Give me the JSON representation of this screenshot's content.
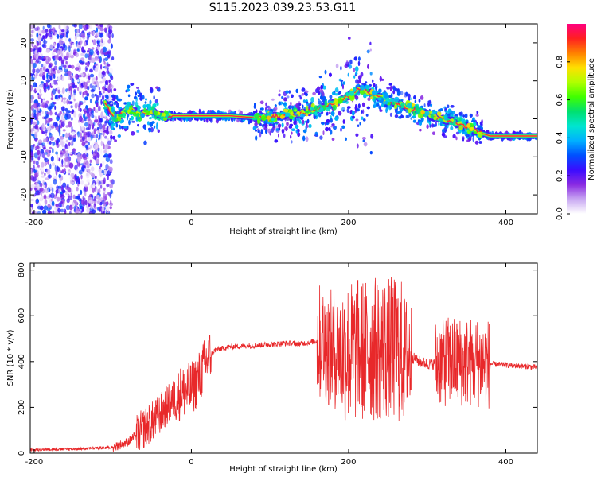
{
  "title": "S115.2023.039.23.53.G11",
  "colorbar": {
    "label": "Normalized spectral amplitude",
    "ticks": [
      "0.0",
      "0.2",
      "0.4",
      "0.6",
      "0.8"
    ],
    "tick_values": [
      0,
      0.2,
      0.4,
      0.6,
      0.8
    ],
    "range": [
      0,
      1
    ],
    "stops": [
      "#ffffff",
      "#c9a8f2",
      "#8a2be2",
      "#3b0cff",
      "#0050ff",
      "#00b0ff",
      "#00e5d0",
      "#00e070",
      "#40ff00",
      "#b0ff00",
      "#ffe000",
      "#ff8000",
      "#ff2020",
      "#ff0080"
    ]
  },
  "chart_data": [
    {
      "type": "heatmap",
      "title": "",
      "xlabel": "Height of straight line (km)",
      "ylabel": "Frequency (Hz)",
      "xlim": [
        -205,
        440
      ],
      "ylim": [
        -25,
        25
      ],
      "xticks": [
        -200,
        0,
        200,
        400
      ],
      "yticks": [
        -20,
        -10,
        0,
        10,
        20
      ],
      "xtick_labels": [
        "-200",
        "0",
        "200",
        "400"
      ],
      "ytick_labels": [
        "-20",
        "-10",
        "0",
        "10",
        "20"
      ],
      "grid": false,
      "ridge": {
        "x": [
          -110,
          -95,
          -80,
          -65,
          -50,
          -35,
          -25,
          0,
          50,
          80,
          100,
          120,
          140,
          160,
          180,
          200,
          215,
          225,
          235,
          250,
          270,
          290,
          310,
          330,
          350,
          365,
          380,
          400,
          440
        ],
        "y": [
          4,
          0,
          3,
          1,
          2,
          0.5,
          0.8,
          0.8,
          0.8,
          0.3,
          0.5,
          1,
          1.5,
          2.5,
          4,
          6,
          8,
          7,
          6,
          5,
          3.5,
          2,
          0.5,
          -0.5,
          -2,
          -3.5,
          -4.5,
          -4.5,
          -4.5
        ]
      }
    },
    {
      "type": "line",
      "title": "",
      "xlabel": "Height of straight line (km)",
      "ylabel": "SNR (10 * v/v)",
      "xlim": [
        -205,
        440
      ],
      "ylim": [
        0,
        830
      ],
      "xticks": [
        -200,
        0,
        200,
        400
      ],
      "yticks": [
        0,
        200,
        400,
        600,
        800
      ],
      "xtick_labels": [
        "-200",
        "0",
        "200",
        "400"
      ],
      "ytick_labels": [
        "0",
        "200",
        "400",
        "600",
        "800"
      ],
      "color": "#e8282a",
      "grid": false,
      "envelope": {
        "x": [
          -205,
          -150,
          -100,
          -80,
          -60,
          -45,
          -30,
          -15,
          0,
          10,
          20,
          30,
          50,
          80,
          100,
          120,
          140,
          160,
          170,
          180,
          200,
          220,
          250,
          270,
          280,
          290,
          300,
          310,
          320,
          340,
          360,
          370,
          380,
          400,
          420,
          440
        ],
        "y": [
          15,
          18,
          25,
          50,
          110,
          150,
          210,
          260,
          280,
          330,
          410,
          450,
          465,
          470,
          475,
          480,
          478,
          490,
          470,
          450,
          440,
          450,
          460,
          440,
          420,
          400,
          390,
          390,
          400,
          400,
          400,
          395,
          390,
          385,
          380,
          375
        ]
      }
    }
  ]
}
